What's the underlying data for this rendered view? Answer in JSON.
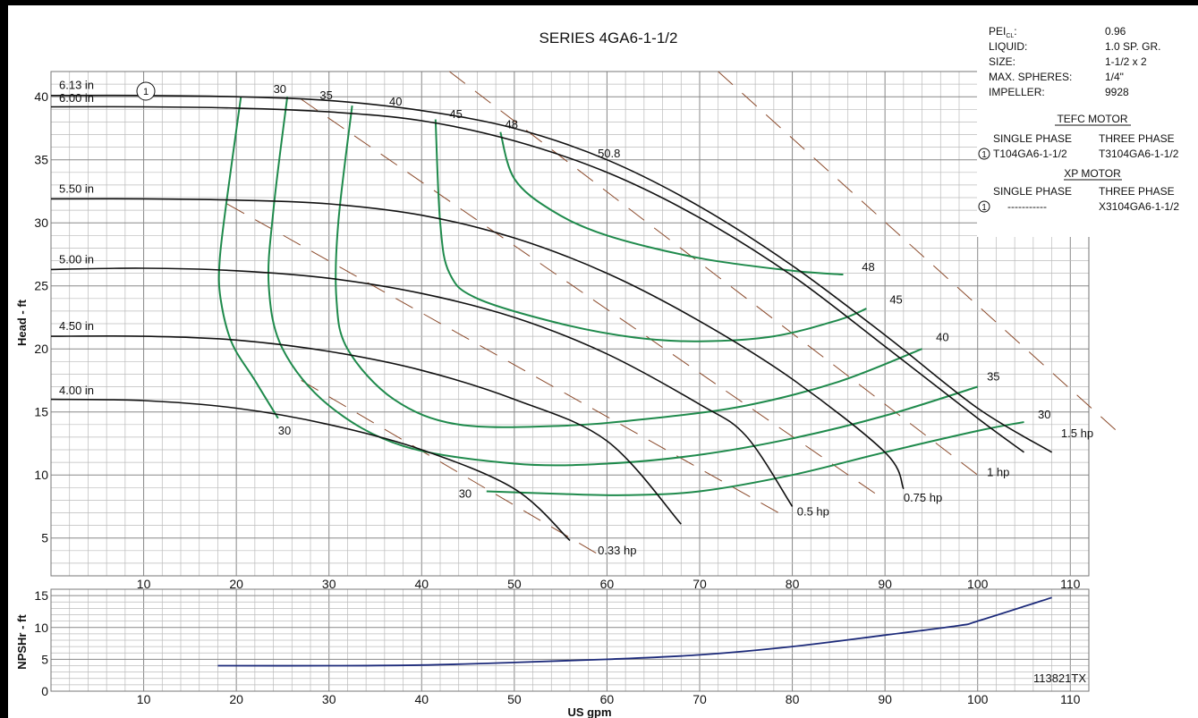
{
  "chart_data": [
    {
      "type": "line",
      "title": "SERIES 4GA6-1-1/2",
      "xlabel": "US gpm",
      "ylabel": "Head - ft",
      "xlim": [
        0,
        112
      ],
      "ylim": [
        2,
        42
      ],
      "x_ticks": [
        10,
        20,
        30,
        40,
        50,
        60,
        70,
        80,
        90,
        100,
        110
      ],
      "y_ticks": [
        5,
        10,
        15,
        20,
        25,
        30,
        35,
        40
      ],
      "grid": true,
      "colors": {
        "impeller": "#111111",
        "efficiency": "#1f8a4c",
        "power": "#8b4a2b",
        "npsh": "#1c2a7a"
      },
      "impeller_curves": [
        {
          "name": "6.13 in",
          "callout": "1",
          "points": [
            [
              0,
              40.1
            ],
            [
              10,
              40.1
            ],
            [
              20,
              40.0
            ],
            [
              30,
              39.7
            ],
            [
              40,
              38.9
            ],
            [
              50,
              37.5
            ],
            [
              60,
              35.0
            ],
            [
              70,
              31.3
            ],
            [
              80,
              26.6
            ],
            [
              90,
              21.1
            ],
            [
              100,
              15.3
            ],
            [
              108,
              11.8
            ]
          ]
        },
        {
          "name": "6.00 in",
          "points": [
            [
              0,
              39.2
            ],
            [
              10,
              39.2
            ],
            [
              20,
              39.1
            ],
            [
              30,
              38.8
            ],
            [
              40,
              38.1
            ],
            [
              50,
              36.5
            ],
            [
              60,
              34.0
            ],
            [
              70,
              30.4
            ],
            [
              80,
              25.8
            ],
            [
              90,
              20.2
            ],
            [
              100,
              14.5
            ],
            [
              105,
              11.8
            ]
          ]
        },
        {
          "name": "5.50 in",
          "points": [
            [
              0,
              31.9
            ],
            [
              10,
              31.9
            ],
            [
              20,
              31.8
            ],
            [
              30,
              31.5
            ],
            [
              40,
              30.6
            ],
            [
              50,
              28.8
            ],
            [
              60,
              26.0
            ],
            [
              70,
              22.2
            ],
            [
              80,
              17.6
            ],
            [
              90,
              11.8
            ],
            [
              92,
              8.9
            ]
          ]
        },
        {
          "name": "5.00 in",
          "points": [
            [
              0,
              26.3
            ],
            [
              10,
              26.4
            ],
            [
              20,
              26.2
            ],
            [
              30,
              25.6
            ],
            [
              40,
              24.4
            ],
            [
              50,
              22.5
            ],
            [
              60,
              19.6
            ],
            [
              70,
              15.6
            ],
            [
              75,
              13.1
            ],
            [
              80,
              7.5
            ]
          ]
        },
        {
          "name": "4.50 in",
          "points": [
            [
              0,
              21.0
            ],
            [
              10,
              21.0
            ],
            [
              20,
              20.7
            ],
            [
              30,
              19.8
            ],
            [
              40,
              18.3
            ],
            [
              50,
              16.0
            ],
            [
              60,
              12.7
            ],
            [
              68,
              6.1
            ]
          ]
        },
        {
          "name": "4.00 in",
          "points": [
            [
              0,
              16.0
            ],
            [
              10,
              15.9
            ],
            [
              20,
              15.3
            ],
            [
              30,
              14.0
            ],
            [
              40,
              12.0
            ],
            [
              50,
              8.9
            ],
            [
              56,
              4.8
            ]
          ]
        }
      ],
      "efficiency_curves": [
        {
          "name": "30",
          "points": [
            [
              20.5,
              40.0
            ],
            [
              19,
              32
            ],
            [
              18.2,
              27
            ],
            [
              18.3,
              24
            ],
            [
              19.5,
              20.5
            ],
            [
              22,
              17.5
            ],
            [
              24.5,
              14.5
            ]
          ]
        },
        {
          "name": "30",
          "points": [
            [
              47,
              8.7
            ],
            [
              55,
              8.5
            ],
            [
              62,
              8.4
            ],
            [
              70,
              8.7
            ],
            [
              80,
              10.0
            ],
            [
              90,
              11.8
            ],
            [
              100,
              13.5
            ],
            [
              105,
              14.2
            ]
          ]
        },
        {
          "name": "35",
          "points": [
            [
              25.5,
              40.0
            ],
            [
              24,
              31
            ],
            [
              23.5,
              25
            ],
            [
              25,
              20
            ],
            [
              30,
              15.5
            ],
            [
              38,
              12.3
            ],
            [
              50,
              10.9
            ],
            [
              60,
              10.9
            ],
            [
              70,
              11.6
            ],
            [
              80,
              12.9
            ],
            [
              90,
              14.7
            ],
            [
              100,
              17.0
            ]
          ]
        },
        {
          "name": "40",
          "points": [
            [
              32.5,
              39.3
            ],
            [
              31,
              30
            ],
            [
              30.8,
              24
            ],
            [
              32,
              20
            ],
            [
              37,
              16
            ],
            [
              44,
              14.0
            ],
            [
              55,
              13.9
            ],
            [
              65,
              14.5
            ],
            [
              75,
              15.5
            ],
            [
              85,
              17.4
            ],
            [
              94,
              20.0
            ]
          ]
        },
        {
          "name": "45",
          "points": [
            [
              41.5,
              38.2
            ],
            [
              42,
              30
            ],
            [
              43,
              26
            ],
            [
              46,
              24
            ],
            [
              55,
              22
            ],
            [
              63,
              20.9
            ],
            [
              70,
              20.6
            ],
            [
              78,
              21.0
            ],
            [
              85,
              22.3
            ],
            [
              88,
              23.2
            ]
          ]
        },
        {
          "name": "48",
          "points": [
            [
              48.5,
              37.2
            ],
            [
              50,
              33.5
            ],
            [
              54,
              31
            ],
            [
              60,
              29
            ],
            [
              70,
              27.2
            ],
            [
              80,
              26.2
            ],
            [
              85.5,
              25.9
            ]
          ]
        }
      ],
      "efficiency_labels": [
        {
          "text": "30",
          "x": 24,
          "y": 40.3
        },
        {
          "text": "35",
          "x": 29,
          "y": 39.8
        },
        {
          "text": "40",
          "x": 36.5,
          "y": 39.3
        },
        {
          "text": "45",
          "x": 43,
          "y": 38.3
        },
        {
          "text": "48",
          "x": 49,
          "y": 37.5
        },
        {
          "text": "50.8",
          "x": 59,
          "y": 35.2
        },
        {
          "text": "48",
          "x": 87.5,
          "y": 26.2
        },
        {
          "text": "45",
          "x": 90.5,
          "y": 23.6
        },
        {
          "text": "40",
          "x": 95.5,
          "y": 20.6
        },
        {
          "text": "35",
          "x": 101,
          "y": 17.5
        },
        {
          "text": "30",
          "x": 106.5,
          "y": 14.5
        },
        {
          "text": "30",
          "x": 24.5,
          "y": 13.2
        },
        {
          "text": "30",
          "x": 44,
          "y": 8.2
        }
      ],
      "power_lines": [
        {
          "name": "0.33 hp",
          "points": [
            [
              27,
              17.5
            ],
            [
              60,
              3.3
            ]
          ]
        },
        {
          "name": "0.5 hp",
          "points": [
            [
              19,
              31.5
            ],
            [
              79,
              6.8
            ]
          ]
        },
        {
          "name": "0.75 hp",
          "points": [
            [
              27,
              39.8
            ],
            [
              90,
              8.0
            ]
          ]
        },
        {
          "name": "1 hp",
          "points": [
            [
              43,
              42.0
            ],
            [
              100,
              10.0
            ]
          ]
        },
        {
          "name": "1.5 hp",
          "points": [
            [
              72,
              42.0
            ],
            [
              115,
              13.5
            ]
          ]
        }
      ],
      "power_labels": [
        {
          "text": "0.33 hp",
          "x": 59,
          "y": 3.7
        },
        {
          "text": "0.5 hp",
          "x": 80.5,
          "y": 6.8
        },
        {
          "text": "0.75 hp",
          "x": 92,
          "y": 7.9
        },
        {
          "text": "1 hp",
          "x": 101,
          "y": 9.9
        },
        {
          "text": "1.5 hp",
          "x": 109,
          "y": 13.0
        }
      ],
      "impeller_labels": [
        {
          "text": "6.13 in",
          "y": 40.6
        },
        {
          "text": "6.00 in",
          "y": 39.6
        },
        {
          "text": "5.50 in",
          "y": 32.4
        },
        {
          "text": "5.00 in",
          "y": 26.8
        },
        {
          "text": "4.50 in",
          "y": 21.5
        },
        {
          "text": "4.00 in",
          "y": 16.4
        }
      ]
    },
    {
      "type": "line",
      "xlabel": "US gpm",
      "ylabel": "NPSHr - ft",
      "xlim": [
        0,
        112
      ],
      "ylim": [
        0,
        16
      ],
      "x_ticks": [
        10,
        20,
        30,
        40,
        50,
        60,
        70,
        80,
        90,
        100,
        110
      ],
      "y_ticks": [
        0,
        5,
        10,
        15
      ],
      "grid": true,
      "series": [
        {
          "points": [
            [
              18,
              4.0
            ],
            [
              30,
              4.0
            ],
            [
              40,
              4.1
            ],
            [
              50,
              4.5
            ],
            [
              60,
              5.0
            ],
            [
              70,
              5.7
            ],
            [
              80,
              7.0
            ],
            [
              90,
              8.8
            ],
            [
              98,
              10.3
            ],
            [
              100,
              11.0
            ],
            [
              108,
              14.7
            ]
          ]
        }
      ]
    }
  ],
  "info_panel": {
    "rows": [
      {
        "label": "PEI",
        "sub": "CL",
        "suffix": ":",
        "value": "0.96"
      },
      {
        "label": "LIQUID:",
        "value": "1.0 SP. GR."
      },
      {
        "label": "SIZE:",
        "value": "1-1/2 x 2"
      },
      {
        "label": "MAX. SPHERES:",
        "value": "1/4\""
      },
      {
        "label": "IMPELLER:",
        "value": "9928"
      }
    ],
    "tefc_heading": "TEFC MOTOR",
    "xp_heading": "XP MOTOR",
    "single_phase": "SINGLE PHASE",
    "three_phase": "THREE PHASE",
    "tefc_callout": "1",
    "tefc_single": "T104GA6-1-1/2",
    "tefc_three": "T3104GA6-1-1/2",
    "xp_callout": "1",
    "xp_single": "-----------",
    "xp_three": "X3104GA6-1-1/2"
  },
  "part_number": "113821TX"
}
